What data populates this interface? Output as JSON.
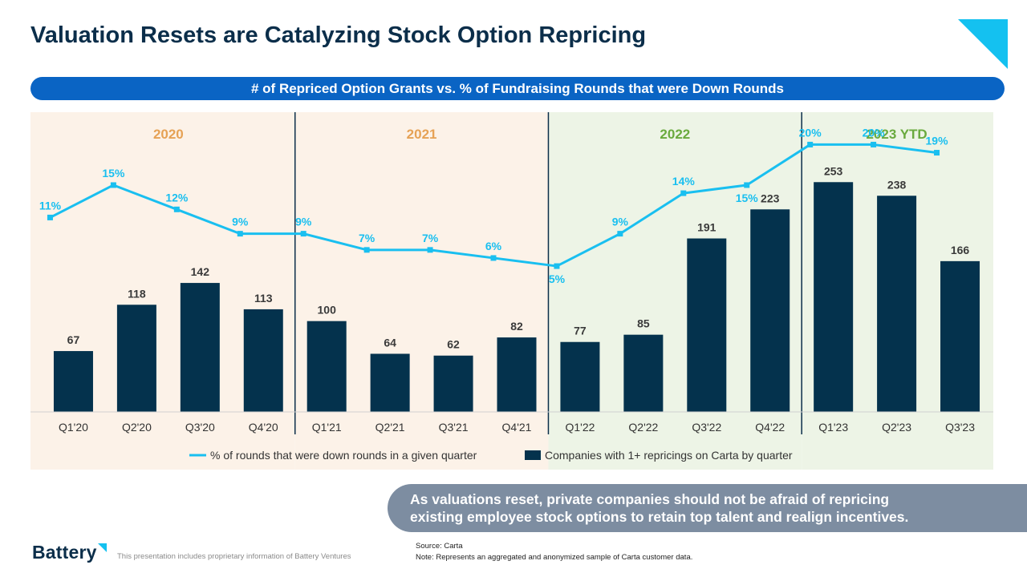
{
  "header": {
    "title": "Valuation Resets are Catalyzing Stock Option Repricing"
  },
  "chart_data": {
    "type": "bar",
    "title": "# of Repriced Option Grants vs. % of Fundraising Rounds that were Down Rounds",
    "categories": [
      "Q1'20",
      "Q2'20",
      "Q3'20",
      "Q4'20",
      "Q1'21",
      "Q2'21",
      "Q3'21",
      "Q4'21",
      "Q1'22",
      "Q2'22",
      "Q3'22",
      "Q4'22",
      "Q1'23",
      "Q2'23",
      "Q3'23"
    ],
    "series": [
      {
        "name": "Companies with 1+ repricings on Carta by quarter",
        "type": "bar",
        "color": "#04324d",
        "values": [
          67,
          118,
          142,
          113,
          100,
          64,
          62,
          82,
          77,
          85,
          191,
          223,
          253,
          238,
          166
        ]
      },
      {
        "name": "% of rounds that were down rounds in a given quarter",
        "type": "line",
        "color": "#19bff0",
        "unit": "%",
        "values": [
          11,
          15,
          12,
          9,
          9,
          7,
          7,
          6,
          5,
          9,
          14,
          15,
          20,
          20,
          19
        ]
      }
    ],
    "year_groups": [
      {
        "label": "2020",
        "start": 0,
        "end": 3,
        "bg": "#fcf2e8",
        "label_color": "#e6a255"
      },
      {
        "label": "2021",
        "start": 4,
        "end": 7,
        "bg": "#fcf2e8",
        "label_color": "#e6a255"
      },
      {
        "label": "2022",
        "start": 8,
        "end": 11,
        "bg": "#edf4e6",
        "label_color": "#6aaa3e"
      },
      {
        "label": "2023 YTD",
        "start": 12,
        "end": 14,
        "bg": "#edf4e6",
        "label_color": "#6aaa3e"
      }
    ],
    "bar_ylim": [
      0,
      330
    ],
    "line_ylim": [
      -13,
      24
    ],
    "legend": "bottom-center",
    "grid": false
  },
  "callout": {
    "line1": "As valuations reset, private companies should not be afraid of repricing",
    "line2": "existing employee stock options to retain top talent and realign incentives."
  },
  "footer": {
    "logo": "Battery",
    "disclaimer": "This presentation includes proprietary information of Battery Ventures",
    "source": "Source: Carta",
    "note": "Note: Represents an aggregated and anonymized sample of Carta customer data."
  }
}
